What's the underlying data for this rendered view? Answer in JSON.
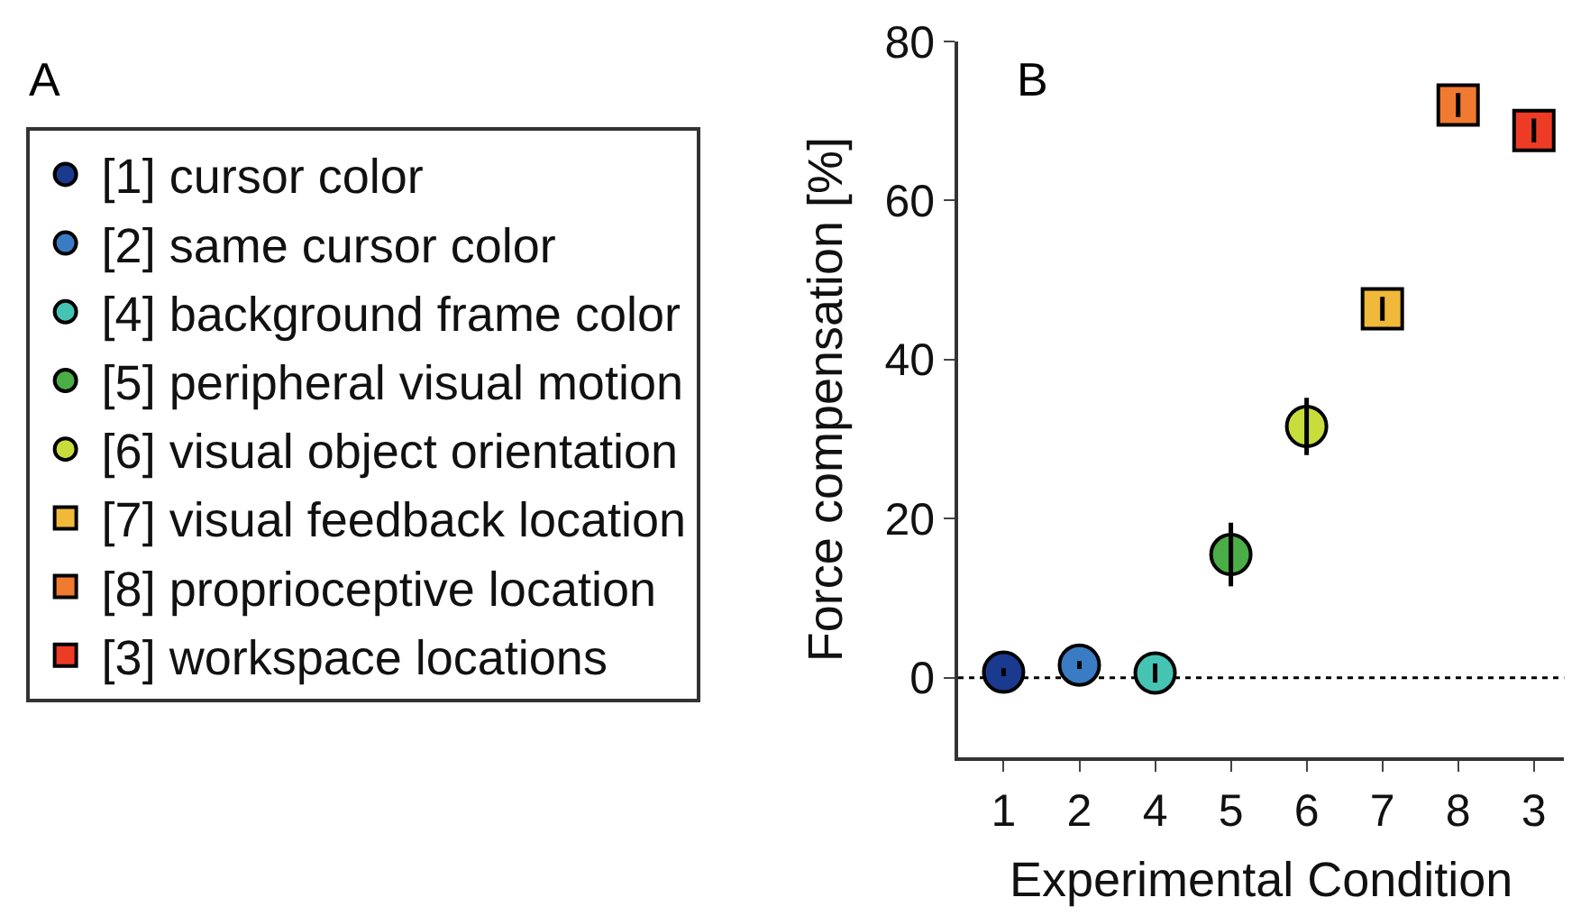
{
  "chart_data": {
    "type": "scatter",
    "categories": [
      "1",
      "2",
      "4",
      "5",
      "6",
      "7",
      "8",
      "3"
    ],
    "xlabel": "Experimental Condition",
    "ylabel": "Force compensation [%]",
    "ylim": [
      -10,
      80
    ],
    "yticks": [
      0,
      20,
      40,
      60,
      80
    ],
    "annotations": [
      "A",
      "B"
    ],
    "ref_lines": [
      {
        "axis": "y",
        "value": 0,
        "label": null,
        "color": "#000000",
        "line_style": "dotted"
      }
    ],
    "legend": "left",
    "grid": false,
    "series": [
      {
        "name": "[1] cursor color",
        "color": "#1a3a8f",
        "marker": "circle",
        "values": [
          0.7,
          null,
          null,
          null,
          null,
          null,
          null,
          null
        ],
        "errors": [
          0.5,
          null,
          null,
          null,
          null,
          null,
          null,
          null
        ]
      },
      {
        "name": "[2] same cursor color",
        "color": "#3a7cc4",
        "marker": "circle",
        "values": [
          null,
          1.6,
          null,
          null,
          null,
          null,
          null,
          null
        ],
        "errors": [
          null,
          0.5,
          null,
          null,
          null,
          null,
          null,
          null
        ]
      },
      {
        "name": "[4] background frame color",
        "color": "#45c4b4",
        "marker": "circle",
        "values": [
          null,
          null,
          0.6,
          null,
          null,
          null,
          null,
          null
        ],
        "errors": [
          null,
          null,
          1.2,
          null,
          null,
          null,
          null,
          null
        ]
      },
      {
        "name": "[5] peripheral visual motion",
        "color": "#4aad45",
        "marker": "circle",
        "values": [
          null,
          null,
          null,
          15.5,
          null,
          null,
          null,
          null
        ],
        "errors": [
          null,
          null,
          null,
          4,
          null,
          null,
          null,
          null
        ]
      },
      {
        "name": "[6] visual object orientation",
        "color": "#c8dc3c",
        "marker": "circle",
        "values": [
          null,
          null,
          null,
          null,
          31.6,
          null,
          null,
          null
        ],
        "errors": [
          null,
          null,
          null,
          null,
          3.6,
          null,
          null,
          null
        ]
      },
      {
        "name": "[7] visual feedback location",
        "color": "#f0b93a",
        "marker": "square",
        "values": [
          null,
          null,
          null,
          null,
          null,
          46.4,
          null,
          null
        ],
        "errors": [
          null,
          null,
          null,
          null,
          null,
          1.5,
          null,
          null
        ]
      },
      {
        "name": "[8] proprioceptive location",
        "color": "#f07a30",
        "marker": "square",
        "values": [
          null,
          null,
          null,
          null,
          null,
          null,
          72,
          null
        ],
        "errors": [
          null,
          null,
          null,
          null,
          null,
          null,
          1.5,
          null
        ]
      },
      {
        "name": "[3] workspace locations",
        "color": "#ee3b25",
        "marker": "square",
        "values": [
          null,
          null,
          null,
          null,
          null,
          null,
          null,
          68.8
        ],
        "errors": [
          null,
          null,
          null,
          null,
          null,
          null,
          null,
          1.5
        ]
      }
    ]
  }
}
